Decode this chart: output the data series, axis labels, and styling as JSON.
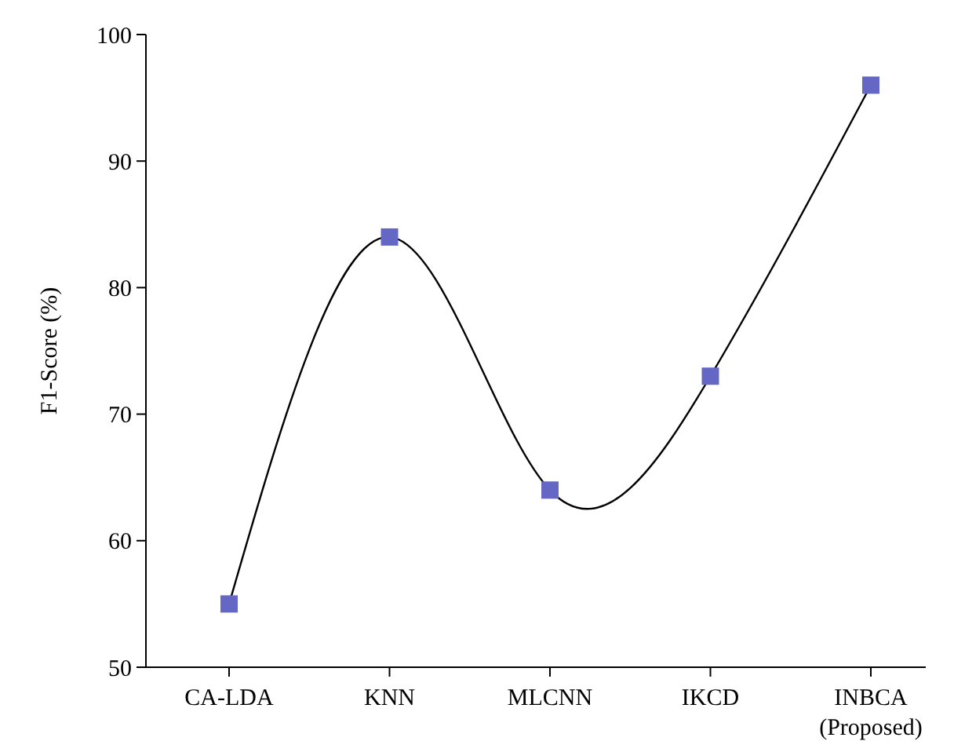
{
  "chart_data": {
    "type": "line",
    "ylabel": "F1-Score (%)",
    "categories": [
      "CA-LDA",
      "KNN",
      "MLCNN",
      "IKCD",
      "INBCA\n(Proposed)"
    ],
    "series": [
      {
        "color": "#6468c4",
        "values": [
          55,
          84,
          64,
          73,
          96
        ]
      }
    ],
    "ylim": [
      50,
      100
    ],
    "yticks": [
      50,
      60,
      70,
      80,
      90,
      100
    ],
    "marker": "square",
    "line_style": "solid",
    "grid": false
  }
}
